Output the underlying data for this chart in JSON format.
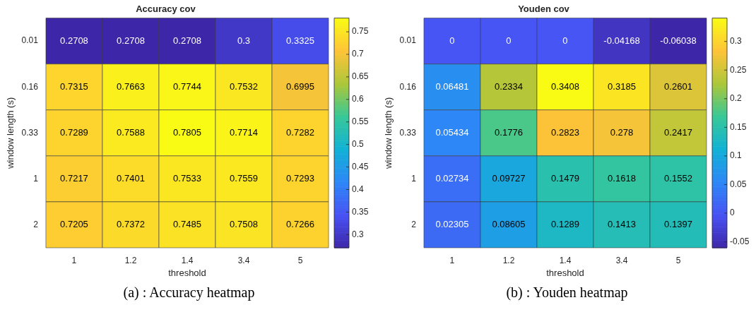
{
  "chart_data": [
    {
      "type": "heatmap",
      "title": "Accuracy cov",
      "xlabel": "threshold",
      "ylabel": "window length (s)",
      "categories": [
        "1",
        "1.2",
        "1.4",
        "3.4",
        "5"
      ],
      "y_categories": [
        "0.01",
        "0.16",
        "0.33",
        "1",
        "2"
      ],
      "cells": [
        [
          0.2708,
          0.2708,
          0.2708,
          0.3,
          0.3325
        ],
        [
          0.7315,
          0.7663,
          0.7744,
          0.7532,
          0.6995
        ],
        [
          0.7289,
          0.7588,
          0.7805,
          0.7714,
          0.7282
        ],
        [
          0.7217,
          0.7401,
          0.7533,
          0.7559,
          0.7293
        ],
        [
          0.7205,
          0.7372,
          0.7485,
          0.7508,
          0.7266
        ]
      ],
      "clim": [
        0.2708,
        0.7805
      ],
      "cticks": [
        0.3,
        0.35,
        0.4,
        0.45,
        0.5,
        0.55,
        0.6,
        0.65,
        0.7,
        0.75
      ],
      "data_labels": true,
      "annotations": [
        "(a) : Accuracy heatmap"
      ]
    },
    {
      "type": "heatmap",
      "title": "Youden cov",
      "xlabel": "threshold",
      "ylabel": "window length (s)",
      "categories": [
        "1",
        "1.2",
        "1.4",
        "3.4",
        "5"
      ],
      "y_categories": [
        "0.01",
        "0.16",
        "0.33",
        "1",
        "2"
      ],
      "cells": [
        [
          0,
          0,
          0,
          -0.04168,
          -0.06038
        ],
        [
          0.06481,
          0.2334,
          0.3408,
          0.3185,
          0.2601
        ],
        [
          0.05434,
          0.1776,
          0.2823,
          0.278,
          0.2417
        ],
        [
          0.02734,
          0.09727,
          0.1479,
          0.1618,
          0.1552
        ],
        [
          0.02305,
          0.08605,
          0.1289,
          0.1413,
          0.1397
        ]
      ],
      "clim": [
        -0.06038,
        0.3408
      ],
      "cticks": [
        -0.05,
        0,
        0.05,
        0.1,
        0.15,
        0.2,
        0.25,
        0.3
      ],
      "data_labels": true,
      "annotations": [
        "(b) : Youden heatmap"
      ]
    }
  ]
}
